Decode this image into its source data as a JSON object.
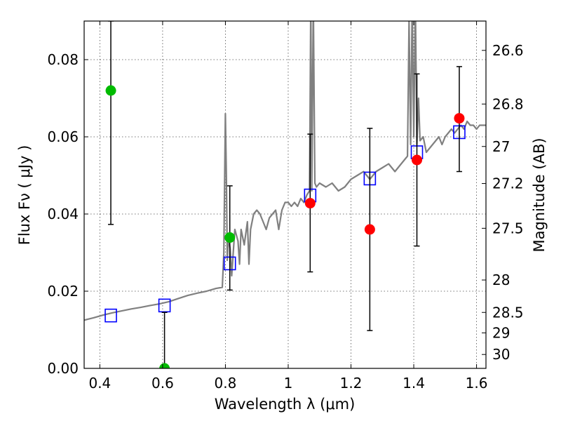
{
  "chart_data": {
    "type": "scatter",
    "title": "",
    "xlabel": "Wavelength  λ (μm)",
    "ylabel": "Flux  Fν  ( μJy )",
    "ylabel_right": "Magnitude (AB)",
    "xlim": [
      0.35,
      1.63
    ],
    "ylim": [
      0.0,
      0.09
    ],
    "grid": true,
    "x_ticks": [
      {
        "value": 0.4,
        "label": "0.4"
      },
      {
        "value": 0.6,
        "label": "0.6"
      },
      {
        "value": 0.8,
        "label": "0.8"
      },
      {
        "value": 1.0,
        "label": "1"
      },
      {
        "value": 1.2,
        "label": "1.2"
      },
      {
        "value": 1.4,
        "label": "1.4"
      },
      {
        "value": 1.6,
        "label": "1.6"
      }
    ],
    "y_ticks": [
      {
        "value": 0.0,
        "label": "0.00"
      },
      {
        "value": 0.02,
        "label": "0.02"
      },
      {
        "value": 0.04,
        "label": "0.04"
      },
      {
        "value": 0.06,
        "label": "0.06"
      },
      {
        "value": 0.08,
        "label": "0.08"
      }
    ],
    "right_ticks": [
      {
        "flux": 0.0824,
        "label": "26.6"
      },
      {
        "flux": 0.0685,
        "label": "26.8"
      },
      {
        "flux": 0.0575,
        "label": "27"
      },
      {
        "flux": 0.0479,
        "label": "27.2"
      },
      {
        "flux": 0.0363,
        "label": "27.5"
      },
      {
        "flux": 0.0229,
        "label": "28"
      },
      {
        "flux": 0.0145,
        "label": "28.5"
      },
      {
        "flux": 0.0092,
        "label": "29"
      },
      {
        "flux": 0.0036,
        "label": "30"
      }
    ],
    "series": [
      {
        "kind": "line",
        "color": "#808080",
        "x": [
          0.35,
          0.38,
          0.41,
          0.44,
          0.47,
          0.5,
          0.53,
          0.56,
          0.59,
          0.62,
          0.65,
          0.68,
          0.71,
          0.74,
          0.77,
          0.79,
          0.795,
          0.8,
          0.803,
          0.806,
          0.81,
          0.815,
          0.82,
          0.825,
          0.83,
          0.84,
          0.845,
          0.85,
          0.86,
          0.87,
          0.875,
          0.88,
          0.89,
          0.9,
          0.91,
          0.92,
          0.93,
          0.94,
          0.95,
          0.96,
          0.97,
          0.98,
          0.99,
          1.0,
          1.01,
          1.02,
          1.03,
          1.04,
          1.05,
          1.06,
          1.068,
          1.072,
          1.075,
          1.08,
          1.085,
          1.09,
          1.1,
          1.12,
          1.14,
          1.16,
          1.18,
          1.2,
          1.22,
          1.24,
          1.26,
          1.28,
          1.3,
          1.32,
          1.34,
          1.36,
          1.37,
          1.38,
          1.385,
          1.39,
          1.395,
          1.4,
          1.405,
          1.41,
          1.415,
          1.42,
          1.43,
          1.44,
          1.45,
          1.46,
          1.47,
          1.48,
          1.49,
          1.5,
          1.51,
          1.52,
          1.53,
          1.54,
          1.55,
          1.56,
          1.57,
          1.58,
          1.59,
          1.6,
          1.61,
          1.62,
          1.63
        ],
        "y": [
          0.0125,
          0.0131,
          0.0138,
          0.0144,
          0.0149,
          0.0154,
          0.0158,
          0.0163,
          0.0167,
          0.0173,
          0.0181,
          0.0189,
          0.0195,
          0.02,
          0.0207,
          0.021,
          0.03,
          0.066,
          0.05,
          0.028,
          0.034,
          0.031,
          0.024,
          0.03,
          0.036,
          0.033,
          0.027,
          0.036,
          0.032,
          0.038,
          0.027,
          0.036,
          0.04,
          0.041,
          0.04,
          0.038,
          0.036,
          0.039,
          0.04,
          0.041,
          0.036,
          0.041,
          0.043,
          0.043,
          0.042,
          0.043,
          0.042,
          0.044,
          0.043,
          0.045,
          0.046,
          0.095,
          0.046,
          0.095,
          0.048,
          0.047,
          0.048,
          0.047,
          0.048,
          0.046,
          0.047,
          0.049,
          0.05,
          0.051,
          0.049,
          0.051,
          0.052,
          0.053,
          0.051,
          0.053,
          0.054,
          0.055,
          0.09,
          0.058,
          0.095,
          0.06,
          0.095,
          0.058,
          0.07,
          0.059,
          0.06,
          0.056,
          0.057,
          0.058,
          0.059,
          0.06,
          0.058,
          0.06,
          0.061,
          0.062,
          0.061,
          0.062,
          0.063,
          0.062,
          0.064,
          0.063,
          0.063,
          0.062,
          0.063,
          0.063,
          0.063
        ]
      },
      {
        "kind": "squares",
        "color": "#0000ff",
        "points": [
          {
            "x": 0.435,
            "y": 0.0137
          },
          {
            "x": 0.606,
            "y": 0.0163
          },
          {
            "x": 0.814,
            "y": 0.0272
          },
          {
            "x": 1.07,
            "y": 0.0448
          },
          {
            "x": 1.26,
            "y": 0.0492
          },
          {
            "x": 1.41,
            "y": 0.056
          },
          {
            "x": 1.545,
            "y": 0.0612
          }
        ]
      },
      {
        "kind": "errorbars",
        "color": "#000000",
        "points": [
          {
            "x": 0.435,
            "y_low": 0.0373,
            "y_high": 0.09
          },
          {
            "x": 0.606,
            "y_low": 0.0,
            "y_high": 0.0145
          },
          {
            "x": 0.814,
            "y_low": 0.0203,
            "y_high": 0.0473
          },
          {
            "x": 1.07,
            "y_low": 0.025,
            "y_high": 0.0607
          },
          {
            "x": 1.26,
            "y_low": 0.0098,
            "y_high": 0.0622
          },
          {
            "x": 1.41,
            "y_low": 0.0317,
            "y_high": 0.0763
          },
          {
            "x": 1.545,
            "y_low": 0.051,
            "y_high": 0.0782
          }
        ]
      },
      {
        "kind": "dots",
        "color": "#00bb00",
        "points": [
          {
            "x": 0.435,
            "y": 0.072
          },
          {
            "x": 0.606,
            "y": 0.0
          },
          {
            "x": 0.814,
            "y": 0.0339
          }
        ]
      },
      {
        "kind": "dots",
        "color": "#ff0000",
        "points": [
          {
            "x": 1.07,
            "y": 0.0428
          },
          {
            "x": 1.26,
            "y": 0.036
          },
          {
            "x": 1.41,
            "y": 0.054
          },
          {
            "x": 1.545,
            "y": 0.0648
          }
        ]
      }
    ]
  }
}
